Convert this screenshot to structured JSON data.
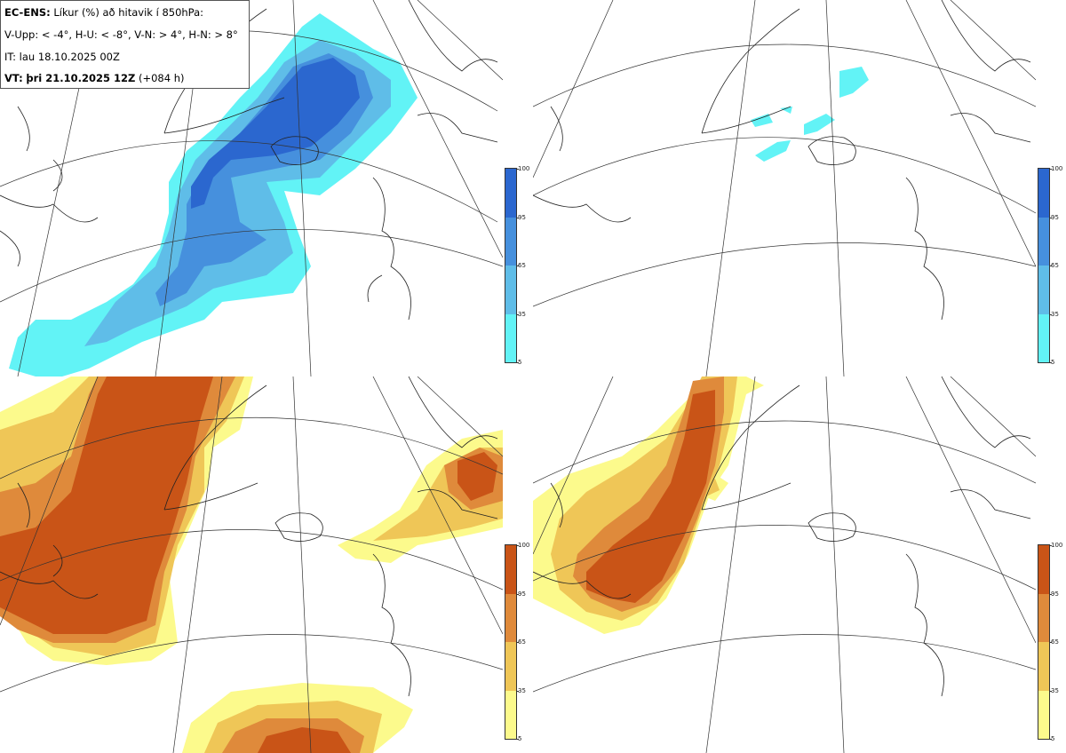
{
  "header": {
    "model": "EC-ENS:",
    "title": "Líkur (%) að hitavik í 850hPa:",
    "quadrants": "V-Upp: < -4°, H-U: < -8°, V-N: > 4°, H-N: > 8°",
    "init_time": "IT: lau 18.10.2025 00Z",
    "valid_prefix": "VT:",
    "valid_time": "þri 21.10.2025 12Z",
    "lead": "(+084 h)"
  },
  "legend_cold": {
    "ticks": [
      "100",
      "95",
      "65",
      "35",
      "5"
    ],
    "colors": [
      "#2b67cf",
      "#4690dd",
      "#5fbde8",
      "#62f3f6"
    ]
  },
  "legend_warm": {
    "ticks": [
      "100",
      "95",
      "65",
      "35",
      "5"
    ],
    "colors": [
      "#c95417",
      "#df8a3b",
      "#efc657",
      "#fcfa8c"
    ]
  },
  "panels": [
    {
      "id": "top-left",
      "quadrant": "V-Upp",
      "threshold": "< -4°"
    },
    {
      "id": "top-right",
      "quadrant": "H-U",
      "threshold": "< -8°"
    },
    {
      "id": "bottom-left",
      "quadrant": "V-N",
      "threshold": "> 4°"
    },
    {
      "id": "bottom-right",
      "quadrant": "H-N",
      "threshold": "> 8°"
    }
  ]
}
